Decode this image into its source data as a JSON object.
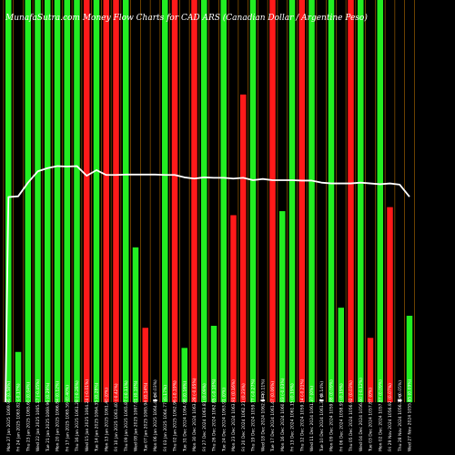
{
  "chart_data": {
    "type": "bar",
    "title": "MunafaSutra.com Money Flow Charts for CAD ARS (Canadian Dollar / Argentine Peso)",
    "ylim": [
      0,
      100
    ],
    "grid": false,
    "legend": "none",
    "colors": {
      "up": "#22ee22",
      "down": "#ff1a1a",
      "flow_line": "#ffffff",
      "divider": "#b06a00"
    },
    "categories": [
      "Mon 27 Jan 2025 1069.96 (0.58%)",
      "Fri 24 Jan 2025 1063.82 (-0.17%)",
      "Thu 23 Jan 2025 1065.60 (0.04%)",
      "Wed 22 Jan 2025 1065.17 (-0.45%)",
      "Tue 21 Jan 2025 1069.96 (0.29%)",
      "Mon 20 Jan 2025 1066.84 (0.12%)",
      "Fri 17 Jan 2025 1065.59 (0.40%)",
      "Thu 16 Jan 2025 1061.28 (-0.28%)",
      "Wed 15 Jan 2025 1064.24 (-0.01%)",
      "Tue 14 Jan 2025 1064.35 (0.28%)",
      "Mon 13 Jan 2025 1061.40 (0%)",
      "Fri 10 Jan 2025 1061.40 (-0.42%)",
      "Thu 09 Jan 2025 1065.87 (-0.11%)",
      "Wed 08 Jan 2025 1067.01 (0.10%)",
      "Tue 07 Jan 2025 1065.94 (0.14%)",
      "Mon 06 Jan 2025 1064.45 (-0.03%)",
      "Fri 03 Jan 2025 1064.77 (0.17%)",
      "Thu 02 Jan 2025 1062.96 (-0.19%)",
      "Tue 31 Dec 2024 1064.98 (0.16%)",
      "Mon 30 Dec 2024 1063.28 (-0.05%)",
      "Fri 27 Dec 2024 1063.81 (0.09%)",
      "Thu 26 Dec 2024 1062.85 (-0.10%)",
      "Tue 24 Dec 2024 1063.91 (0%)",
      "Mon 23 Dec 2024 1063.91 (0.16%)",
      "Fri 20 Dec 2024 1062.21 (0.23%)",
      "Thu 19 Dec 2024 1059.77 (-0.27%)",
      "Wed 18 Dec 2024 1062.64 (0.11%)",
      "Tue 17 Dec 2024 1061.47 (0.06%)",
      "Mon 16 Dec 2024 1060.83 (-0.03%)",
      "Fri 13 Dec 2024 1061.15 (0.19%)",
      "Thu 12 Dec 2024 1059.14 (-0.21%)",
      "Wed 11 Dec 2024 1061.37 (0%)",
      "Tue 10 Dec 2024 1061.37 (0.14%)",
      "Mon 09 Dec 2024 1059.88 (0.09%)",
      "Fri 06 Dec 2024 1058.93 (0.19%)",
      "Thu 05 Dec 2024 1056.92 (0.03%)",
      "Wed 04 Dec 2024 1056.60 (-0.12%)",
      "Tue 03 Dec 2024 1057.87 (0%)",
      "Mon 02 Dec 2024 1057.87 (0.09%)",
      "Fri 29 Nov 2024 1056.92 (0.07%)",
      "Thu 28 Nov 2024 1056.18 (0.05%)",
      "Wed 27 Nov 2024 1055.65 (0.09%)"
    ],
    "series": [
      {
        "directions": [
          "up",
          "up",
          "up",
          "up",
          "up",
          "up",
          "up",
          "up",
          "down",
          "up",
          "down",
          "down",
          "up",
          "up",
          "down",
          "down",
          "up",
          "down",
          "up",
          "down",
          "up",
          "up",
          "up",
          "down",
          "down",
          "up",
          "down",
          "down",
          "up",
          "up",
          "down",
          "up",
          "up",
          "up",
          "up",
          "down",
          "up",
          "down",
          "up",
          "down",
          "up",
          "up"
        ],
        "values": [
          100,
          12.5,
          100,
          100,
          100,
          100,
          100,
          100,
          100,
          100,
          100,
          100,
          100,
          38.5,
          18.5,
          0,
          100,
          100,
          13.5,
          100,
          100,
          19,
          100,
          46.5,
          76.5,
          100,
          0,
          100,
          47.5,
          100,
          100,
          100,
          0,
          100,
          23.5,
          100,
          100,
          16,
          100,
          48.5,
          0,
          21.5
        ]
      },
      {
        "values": [
          51,
          51.2,
          54.6,
          57.4,
          58.2,
          58.7,
          58.6,
          58.7,
          56.3,
          57.7,
          56.5,
          56.5,
          56.6,
          56.6,
          56.6,
          56.6,
          56.5,
          56.5,
          55.9,
          55.6,
          55.9,
          55.8,
          55.8,
          55.6,
          55.8,
          55.2,
          55.5,
          55.2,
          55.2,
          55.2,
          55.1,
          55.1,
          54.6,
          54.4,
          54.4,
          54.4,
          54.6,
          54.4,
          54.2,
          54.4,
          54.1,
          51.1
        ]
      }
    ],
    "annotations": [
      "0",
      "0",
      "0",
      "0",
      "0"
    ]
  }
}
